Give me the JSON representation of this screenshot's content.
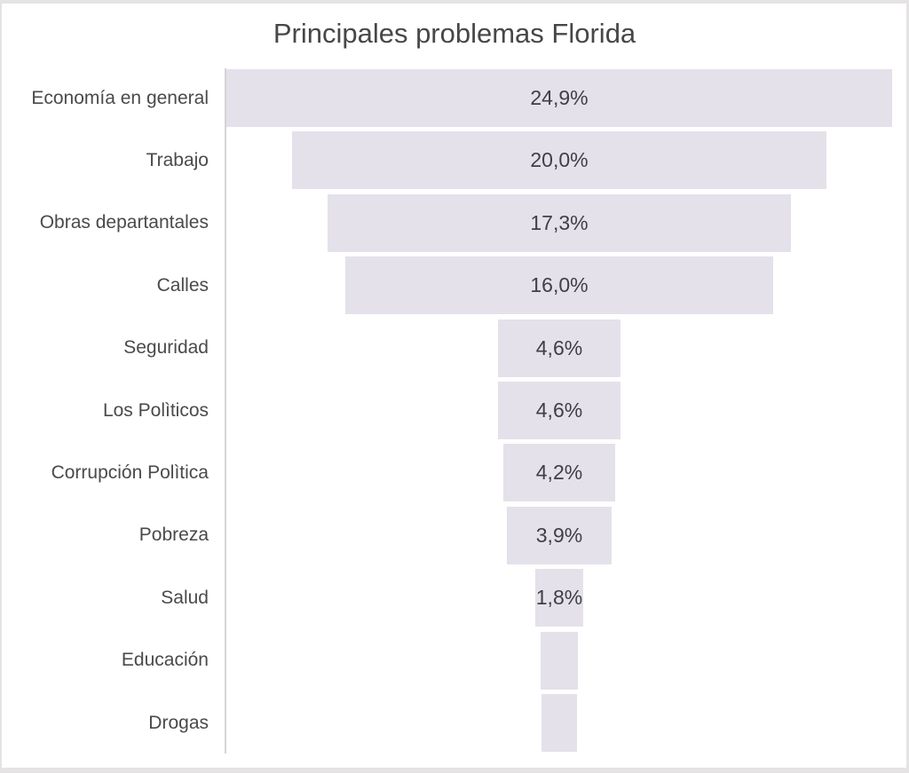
{
  "chart_data": {
    "type": "bar",
    "variant": "funnel",
    "title": "Principales problemas Florida",
    "orientation": "horizontal-centered",
    "categories": [
      "Economía en general",
      "Trabajo",
      "Obras departantales",
      "Calles",
      "Seguridad",
      "Los Polìticos",
      "Corrupción Polìtica",
      "Pobreza",
      "Salud",
      "Educación",
      "Drogas"
    ],
    "values": [
      24.9,
      20.0,
      17.3,
      16.0,
      4.6,
      4.6,
      4.2,
      3.9,
      1.8,
      1.4,
      1.3
    ],
    "data_labels": [
      "24,9%",
      "20,0%",
      "17,3%",
      "16,0%",
      "4,6%",
      "4,6%",
      "4,2%",
      "3,9%",
      "1,8%",
      "",
      ""
    ],
    "xlabel": "",
    "ylabel": "",
    "value_range": [
      0,
      24.9
    ],
    "grid": false,
    "legend": false,
    "colors": {
      "bar_fill": "#e4e1ea",
      "value_label_text": "#3f3f44",
      "category_label_text": "#4a4a4a",
      "title_text": "#474747",
      "axis_line": "#d6d4d4",
      "frame_border": "#e5e3e3",
      "background": "#ffffff"
    }
  }
}
